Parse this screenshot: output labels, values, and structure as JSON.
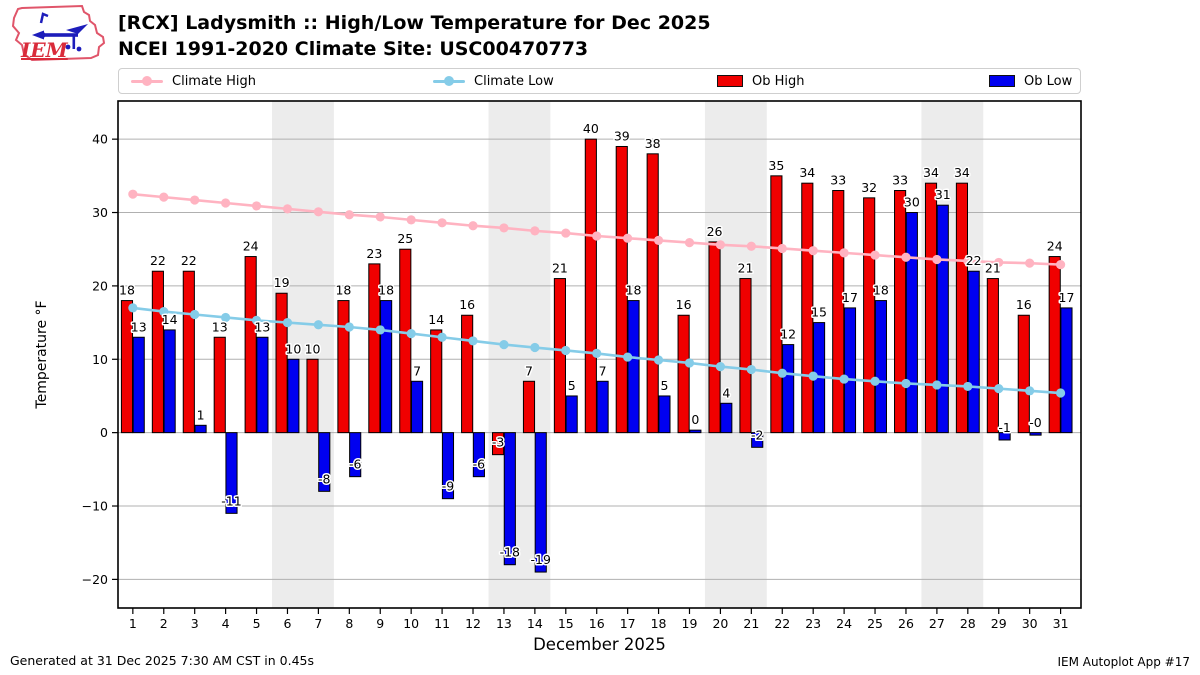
{
  "header": {
    "title_line1": "[RCX] Ladysmith :: High/Low Temperature for Dec 2025",
    "title_line2": "NCEI 1991-2020 Climate Site: USC00470773",
    "logo_text": "IEM"
  },
  "legend": {
    "items": [
      {
        "label": "Climate High",
        "type": "line-dot",
        "color": "#ffb3c1"
      },
      {
        "label": "Climate Low",
        "type": "line-dot",
        "color": "#85cce8"
      },
      {
        "label": "Ob High",
        "type": "rect",
        "color": "#f00000"
      },
      {
        "label": "Ob Low",
        "type": "rect",
        "color": "#0000f0"
      }
    ]
  },
  "chart_data": {
    "type": "bar",
    "title": "[RCX] Ladysmith :: High/Low Temperature for Dec 2025",
    "xlabel": "December 2025",
    "ylabel": "Temperature °F",
    "x": [
      1,
      2,
      3,
      4,
      5,
      6,
      7,
      8,
      9,
      10,
      11,
      12,
      13,
      14,
      15,
      16,
      17,
      18,
      19,
      20,
      21,
      22,
      23,
      24,
      25,
      26,
      27,
      28,
      29,
      30,
      31
    ],
    "xlim": [
      0.52,
      31.66
    ],
    "ylim": [
      -23.9,
      45.2
    ],
    "yticks": [
      -20,
      -10,
      0,
      10,
      20,
      30,
      40
    ],
    "grid": "horizontal",
    "weekend_bands": [
      [
        5.5,
        7.5
      ],
      [
        12.5,
        14.5
      ],
      [
        19.5,
        21.5
      ],
      [
        26.5,
        28.5
      ]
    ],
    "band_color": "#ececec",
    "grid_color": "#b0b0b0",
    "series": [
      {
        "name": "Ob High",
        "type": "bar",
        "color": "#f00000",
        "values": [
          18,
          22,
          22,
          13,
          24,
          19,
          10,
          18,
          23,
          25,
          14,
          16,
          -3,
          7,
          21,
          40,
          39,
          38,
          16,
          26,
          21,
          35,
          34,
          33,
          32,
          33,
          34,
          34,
          21,
          16,
          24
        ],
        "labels": [
          "18",
          "22",
          "22",
          "13",
          "24",
          "19",
          "10",
          "18",
          "23",
          "25",
          "14",
          "16",
          "-3",
          "7",
          "21",
          "40",
          "39",
          "38",
          "16",
          "26",
          "21",
          "35",
          "34",
          "33",
          "32",
          "33",
          "34",
          "34",
          "21",
          "16",
          "24"
        ]
      },
      {
        "name": "Ob Low",
        "type": "bar",
        "color": "#0000f0",
        "values": [
          13,
          14,
          1,
          -11,
          13,
          10,
          -8,
          -6,
          18,
          7,
          -9,
          -6,
          -18,
          -19,
          5,
          7,
          18,
          5,
          0,
          4,
          -2,
          12,
          15,
          17,
          18,
          30,
          31,
          22,
          -1,
          -0.2,
          17
        ],
        "labels": [
          "13",
          "14",
          "1",
          "-11",
          "13",
          "10",
          "-8",
          "-6",
          "18",
          "7",
          "-9",
          "-6",
          "-18",
          "-19",
          "5",
          "7",
          "18",
          "5",
          "0",
          "4",
          "-2",
          "12",
          "15",
          "17",
          "18",
          "30",
          "31",
          "22",
          "-1",
          "-0",
          "17"
        ]
      },
      {
        "name": "Climate High",
        "type": "line",
        "color": "#ffb3c1",
        "values": [
          32.5,
          32.1,
          31.7,
          31.3,
          30.9,
          30.5,
          30.1,
          29.7,
          29.4,
          29.0,
          28.6,
          28.2,
          27.9,
          27.5,
          27.2,
          26.8,
          26.5,
          26.2,
          25.9,
          25.6,
          25.4,
          25.1,
          24.8,
          24.5,
          24.2,
          23.9,
          23.6,
          23.4,
          23.2,
          23.1,
          22.9
        ]
      },
      {
        "name": "Climate Low",
        "type": "line",
        "color": "#85cce8",
        "values": [
          17.0,
          16.5,
          16.1,
          15.7,
          15.3,
          15.0,
          14.7,
          14.4,
          14.0,
          13.5,
          13.0,
          12.5,
          12.0,
          11.6,
          11.2,
          10.8,
          10.3,
          9.9,
          9.5,
          9.0,
          8.6,
          8.1,
          7.7,
          7.3,
          7.0,
          6.7,
          6.5,
          6.3,
          6.0,
          5.7,
          5.4
        ]
      }
    ]
  },
  "footer": {
    "generated": "Generated at 31 Dec 2025 7:30 AM CST in 0.45s",
    "app": "IEM Autoplot App #17"
  }
}
